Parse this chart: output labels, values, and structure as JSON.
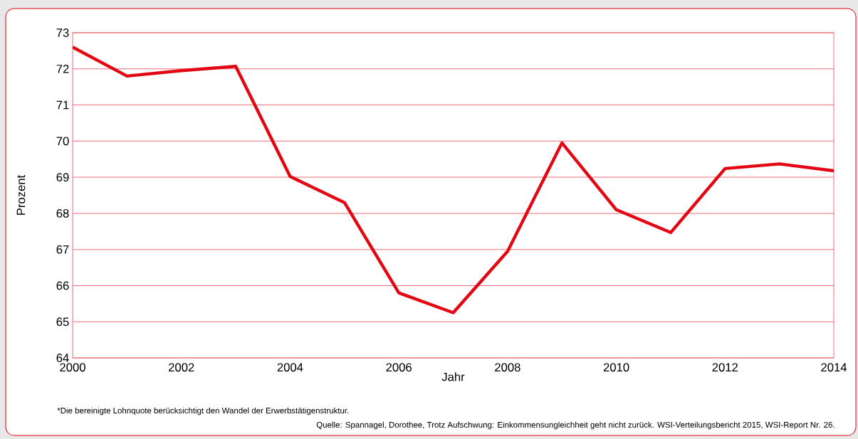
{
  "chart_data": {
    "type": "line",
    "xlabel": "Jahr",
    "ylabel": "Prozent",
    "x": [
      2000,
      2001,
      2002,
      2003,
      2004,
      2005,
      2006,
      2007,
      2008,
      2009,
      2010,
      2011,
      2012,
      2013,
      2014
    ],
    "series": [
      {
        "color": "#e30613",
        "values": [
          72.6,
          71.8,
          71.95,
          72.07,
          69.02,
          68.3,
          65.8,
          65.25,
          66.95,
          69.95,
          68.1,
          67.47,
          69.24,
          69.37,
          69.18
        ]
      }
    ],
    "xlim": [
      2000,
      2014
    ],
    "ylim": [
      64,
      73
    ],
    "xticks": [
      2000,
      2002,
      2004,
      2006,
      2008,
      2010,
      2012,
      2014
    ],
    "yticks": [
      64,
      65,
      66,
      67,
      68,
      69,
      70,
      71,
      72,
      73
    ],
    "grid": "y",
    "marker": "none",
    "line_style": "solid",
    "annotations": [
      "*Die bereinigte Lohnquote berücksichtigt den Wandel der Erwerbstätigenstruktur.",
      "Quelle: Spannagel, Dorothee, Trotz Aufschwung: Einkommensungleichheit geht nicht zurück. WSI-Verteilungsbericht 2015, WSI-Report Nr. 26."
    ]
  }
}
